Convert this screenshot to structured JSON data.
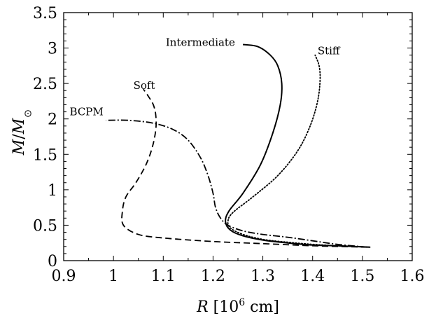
{
  "chart_data": {
    "type": "line",
    "title": "",
    "xlabel": "R [10^6 cm]",
    "ylabel": "M/M_sun",
    "xlim": [
      0.9,
      1.6
    ],
    "ylim": [
      0,
      3.5
    ],
    "xticks": [
      "0.9",
      "1",
      "1.1",
      "1.2",
      "1.3",
      "1.4",
      "1.5",
      "1.6"
    ],
    "yticks": [
      "0",
      "0.5",
      "1",
      "1.5",
      "2",
      "2.5",
      "3",
      "3.5"
    ],
    "grid": false,
    "legend": "none",
    "series": [
      {
        "name": "Soft",
        "line_style": "dashed",
        "label_at": [
          1.04,
          2.47
        ],
        "points": [
          [
            1.51,
            0.19
          ],
          [
            1.4,
            0.21
          ],
          [
            1.3,
            0.24
          ],
          [
            1.2,
            0.27
          ],
          [
            1.1,
            0.32
          ],
          [
            1.05,
            0.37
          ],
          [
            1.02,
            0.5
          ],
          [
            1.018,
            0.7
          ],
          [
            1.025,
            0.9
          ],
          [
            1.045,
            1.1
          ],
          [
            1.065,
            1.35
          ],
          [
            1.078,
            1.6
          ],
          [
            1.085,
            1.85
          ],
          [
            1.085,
            2.05
          ],
          [
            1.08,
            2.2
          ],
          [
            1.07,
            2.32
          ],
          [
            1.06,
            2.42
          ]
        ]
      },
      {
        "name": "BCPM",
        "line_style": "dash-dot",
        "label_at": [
          0.912,
          2.1
        ],
        "points": [
          [
            1.51,
            0.19
          ],
          [
            1.45,
            0.23
          ],
          [
            1.4,
            0.28
          ],
          [
            1.35,
            0.33
          ],
          [
            1.3,
            0.37
          ],
          [
            1.26,
            0.42
          ],
          [
            1.23,
            0.5
          ],
          [
            1.215,
            0.6
          ],
          [
            1.205,
            0.75
          ],
          [
            1.2,
            0.95
          ],
          [
            1.19,
            1.2
          ],
          [
            1.175,
            1.45
          ],
          [
            1.15,
            1.7
          ],
          [
            1.12,
            1.85
          ],
          [
            1.08,
            1.94
          ],
          [
            1.03,
            1.98
          ],
          [
            0.985,
            1.98
          ]
        ]
      },
      {
        "name": "Intermediate",
        "line_style": "solid",
        "label_at": [
          1.105,
          3.08
        ],
        "points": [
          [
            1.515,
            0.19
          ],
          [
            1.45,
            0.21
          ],
          [
            1.4,
            0.22
          ],
          [
            1.35,
            0.25
          ],
          [
            1.3,
            0.29
          ],
          [
            1.26,
            0.35
          ],
          [
            1.235,
            0.43
          ],
          [
            1.225,
            0.55
          ],
          [
            1.232,
            0.7
          ],
          [
            1.26,
            0.95
          ],
          [
            1.295,
            1.35
          ],
          [
            1.32,
            1.8
          ],
          [
            1.335,
            2.2
          ],
          [
            1.338,
            2.5
          ],
          [
            1.33,
            2.75
          ],
          [
            1.315,
            2.9
          ],
          [
            1.29,
            3.02
          ],
          [
            1.26,
            3.05
          ]
        ]
      },
      {
        "name": "Stiff",
        "line_style": "dotted",
        "label_at": [
          1.41,
          2.96
        ],
        "points": [
          [
            1.515,
            0.19
          ],
          [
            1.45,
            0.21
          ],
          [
            1.4,
            0.23
          ],
          [
            1.35,
            0.26
          ],
          [
            1.3,
            0.3
          ],
          [
            1.26,
            0.37
          ],
          [
            1.235,
            0.46
          ],
          [
            1.23,
            0.56
          ],
          [
            1.24,
            0.68
          ],
          [
            1.28,
            0.9
          ],
          [
            1.33,
            1.2
          ],
          [
            1.37,
            1.55
          ],
          [
            1.395,
            1.9
          ],
          [
            1.41,
            2.25
          ],
          [
            1.415,
            2.55
          ],
          [
            1.413,
            2.75
          ],
          [
            1.405,
            2.9
          ]
        ]
      }
    ]
  }
}
